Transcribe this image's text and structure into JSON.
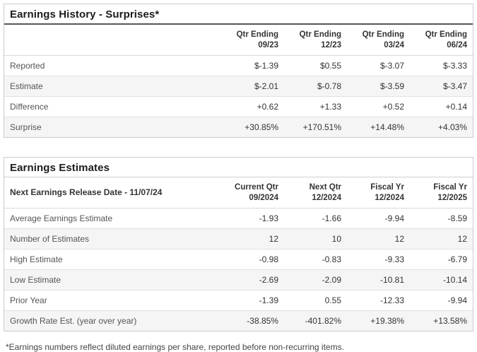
{
  "colors": {
    "positive": "#2f9d63",
    "negative": "#d0514e",
    "alt_row_bg": "#f5f5f5",
    "panel_border": "#cbcbcb"
  },
  "surprises_table": {
    "title": "Earnings History - Surprises*",
    "columns": [
      {
        "line1": "Qtr Ending",
        "line2": "09/23"
      },
      {
        "line1": "Qtr Ending",
        "line2": "12/23"
      },
      {
        "line1": "Qtr Ending",
        "line2": "03/24"
      },
      {
        "line1": "Qtr Ending",
        "line2": "06/24"
      }
    ],
    "rows": [
      {
        "label": "Reported",
        "values": [
          "$-1.39",
          "$0.55",
          "$-3.07",
          "$-3.33"
        ]
      },
      {
        "label": "Estimate",
        "values": [
          "$-2.01",
          "$-0.78",
          "$-3.59",
          "$-3.47"
        ]
      },
      {
        "label": "Difference",
        "values": [
          "+0.62",
          "+1.33",
          "+0.52",
          "+0.14"
        ],
        "color": "positive"
      },
      {
        "label": "Surprise",
        "values": [
          "+30.85%",
          "+170.51%",
          "+14.48%",
          "+4.03%"
        ],
        "color": "positive"
      }
    ]
  },
  "estimates_table": {
    "title": "Earnings Estimates",
    "row_header": "Next Earnings Release Date - 11/07/24",
    "columns": [
      {
        "line1": "Current Qtr",
        "line2": "09/2024"
      },
      {
        "line1": "Next Qtr",
        "line2": "12/2024"
      },
      {
        "line1": "Fiscal Yr",
        "line2": "12/2024"
      },
      {
        "line1": "Fiscal Yr",
        "line2": "12/2025"
      }
    ],
    "rows": [
      {
        "label": "Average Earnings Estimate",
        "values": [
          "-1.93",
          "-1.66",
          "-9.94",
          "-8.59"
        ]
      },
      {
        "label": "Number of Estimates",
        "values": [
          "12",
          "10",
          "12",
          "12"
        ]
      },
      {
        "label": "High Estimate",
        "values": [
          "-0.98",
          "-0.83",
          "-9.33",
          "-6.79"
        ]
      },
      {
        "label": "Low Estimate",
        "values": [
          "-2.69",
          "-2.09",
          "-10.81",
          "-10.14"
        ]
      },
      {
        "label": "Prior Year",
        "values": [
          "-1.39",
          "0.55",
          "-12.33",
          "-9.94"
        ]
      },
      {
        "label": "Growth Rate Est. (year over year)",
        "values": [
          "-38.85%",
          "-401.82%",
          "+19.38%",
          "+13.58%"
        ],
        "value_colors": [
          "negative",
          "negative",
          "positive",
          "positive"
        ]
      }
    ]
  },
  "footnote": "*Earnings numbers reflect diluted earnings per share, reported before non-recurring items."
}
